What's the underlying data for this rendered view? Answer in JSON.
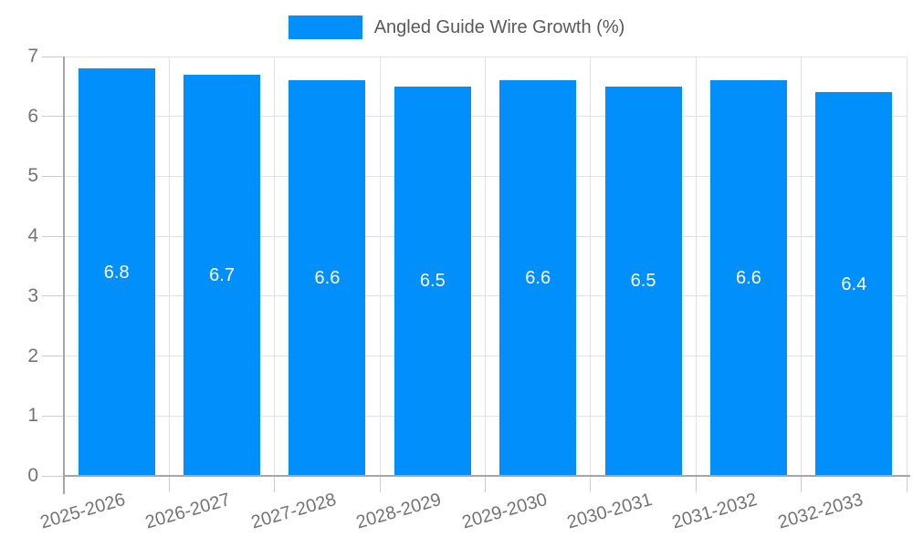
{
  "chart_data": {
    "type": "bar",
    "title": "",
    "legend": {
      "label": "Angled Guide Wire Growth (%)",
      "color": "#008FFB",
      "position": "top"
    },
    "categories": [
      "2025-2026",
      "2026-2027",
      "2027-2028",
      "2028-2029",
      "2029-2030",
      "2030-2031",
      "2031-2032",
      "2032-2033"
    ],
    "values": [
      6.8,
      6.7,
      6.6,
      6.5,
      6.6,
      6.5,
      6.6,
      6.4
    ],
    "data_labels": [
      "6.8",
      "6.7",
      "6.6",
      "6.5",
      "6.6",
      "6.5",
      "6.6",
      "6.4"
    ],
    "xlabel": "",
    "ylabel": "",
    "ylim": [
      0,
      7
    ],
    "yticks": [
      0,
      1,
      2,
      3,
      4,
      5,
      6,
      7
    ],
    "grid": true,
    "x_label_rotation_deg": -16,
    "colors": {
      "bar": "#008FFB",
      "value_label": "#ffffff",
      "axis": "#a6a6a6",
      "gridline": "#e2e2e2",
      "tick": "#cdcdcd",
      "axis_label": "#737373",
      "legend_text": "#595959",
      "background": "#ffffff"
    }
  }
}
